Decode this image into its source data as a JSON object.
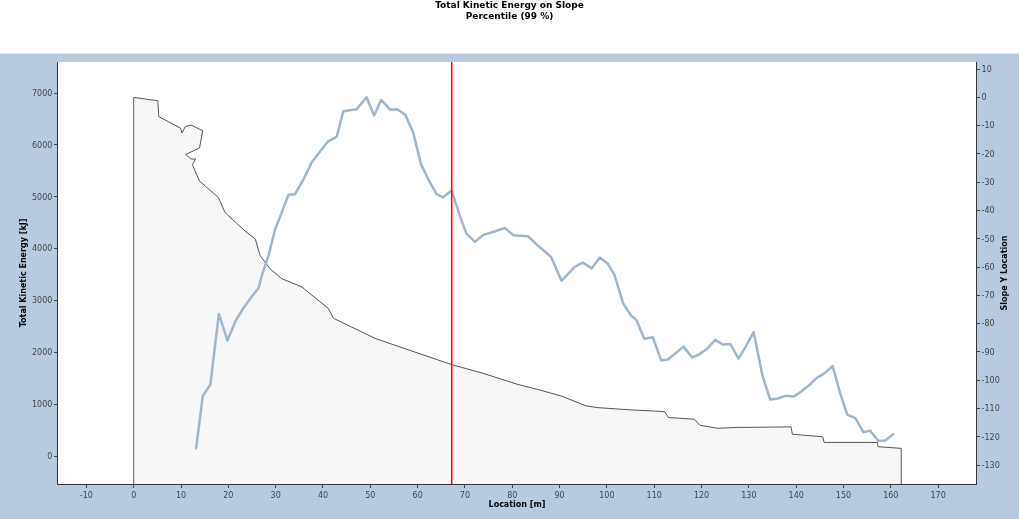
{
  "chart_data": {
    "type": "line",
    "title": "Total Kinetic Energy on Slope",
    "subtitle": "Percentile (99 %)",
    "xlabel": "Location [m]",
    "ylabel": "Total Kinetic Energy [kJ]",
    "y2label": "Slope Y Location",
    "xlim": [
      -16,
      178
    ],
    "xticks": [
      -10,
      0,
      10,
      20,
      30,
      40,
      50,
      60,
      70,
      80,
      90,
      100,
      110,
      120,
      130,
      140,
      150,
      160,
      170
    ],
    "ylim": [
      -540,
      7600
    ],
    "yticks": [
      0,
      1000,
      2000,
      3000,
      4000,
      5000,
      6000,
      7000
    ],
    "y2lim": [
      -136.7,
      12.5
    ],
    "y2ticks": [
      10,
      0,
      -10,
      -20,
      -30,
      -40,
      -50,
      -60,
      -70,
      -80,
      -90,
      -100,
      -110,
      -120,
      -130
    ],
    "series": [
      {
        "type": "area",
        "axis": "y2",
        "color": "#555555",
        "x": [
          0,
          0,
          5.1,
          5.3,
          9.9,
          10.2,
          10.9,
          12.1,
          14.6,
          13.9,
          11,
          12.1,
          13.1,
          12.4,
          13.9,
          17.9,
          19.3,
          23.5,
          25.7,
          26.7,
          28.8,
          31.3,
          35.5,
          41.1,
          42.2,
          51,
          56,
          67.2,
          73.5,
          81.2,
          85.4,
          90.4,
          95.6,
          98.1,
          105.1,
          112.2,
          113,
          118.5,
          119.6,
          123.4,
          127.6,
          138.9,
          139.2,
          145.6,
          145.9,
          157.2,
          157.3,
          162.2,
          162.2
        ],
        "values": [
          -136.7,
          0,
          -1.2,
          -6.8,
          -10.9,
          -12.6,
          -10.3,
          -9.8,
          -11.8,
          -17.9,
          -20.2,
          -21.8,
          -21.8,
          -23.8,
          -29.6,
          -35.4,
          -40.7,
          -47.2,
          -50.1,
          -55.9,
          -60.6,
          -64.1,
          -67,
          -74.6,
          -78.1,
          -85.2,
          -88.1,
          -94.5,
          -97.4,
          -101.5,
          -103.3,
          -105.6,
          -109.1,
          -109.7,
          -110.5,
          -111.1,
          -113.2,
          -113.8,
          -115.9,
          -117,
          -116.7,
          -116.5,
          -119.1,
          -120,
          -122,
          -122,
          -123.5,
          -124.1,
          -136.7
        ]
      },
      {
        "color": "#9fb6cc",
        "x": [
          13.2,
          14.6,
          16.2,
          18,
          19.8,
          21.5,
          23.1,
          25,
          26.4,
          27.1,
          28.5,
          29.9,
          31.3,
          32.7,
          34.1,
          35.9,
          37.6,
          39.7,
          41.1,
          42.9,
          44.3,
          47.1,
          49.2,
          50.8,
          52.3,
          54.2,
          55.7,
          57.4,
          59.1,
          60.7,
          62.4,
          64,
          65.4,
          67.2,
          68.9,
          70.3,
          72.1,
          73.8,
          76.3,
          78.4,
          80.2,
          83.3,
          85.4,
          88.2,
          90.4,
          93.2,
          94.9,
          96.8,
          98.5,
          100.2,
          101.6,
          103,
          103.4,
          105.1,
          106.2,
          107.9,
          109.7,
          111.5,
          112.9,
          116.2,
          118,
          119.5,
          121.2,
          122.9,
          124.5,
          126.1,
          127.8,
          129.4,
          131,
          132.9,
          134.5,
          136.1,
          137.8,
          139.5,
          141,
          142.8,
          144.4,
          145.9,
          147.7,
          149.3,
          150.8,
          152.5,
          154.2,
          155.6,
          157.4,
          158.8,
          160.5
        ],
        "values": [
          150,
          1160,
          1380,
          2740,
          2230,
          2600,
          2840,
          3080,
          3240,
          3490,
          3870,
          4380,
          4700,
          5040,
          5050,
          5340,
          5660,
          5910,
          6070,
          6160,
          6650,
          6690,
          6920,
          6570,
          6870,
          6680,
          6690,
          6580,
          6230,
          5630,
          5310,
          5050,
          4990,
          5120,
          4640,
          4290,
          4130,
          4260,
          4330,
          4400,
          4260,
          4240,
          4060,
          3840,
          3380,
          3650,
          3730,
          3620,
          3830,
          3710,
          3490,
          3080,
          2950,
          2710,
          2630,
          2260,
          2290,
          1840,
          1860,
          2110,
          1900,
          1960,
          2070,
          2240,
          2150,
          2160,
          1880,
          2120,
          2390,
          1540,
          1090,
          1110,
          1160,
          1150,
          1240,
          1370,
          1510,
          1590,
          1740,
          1210,
          800,
          730,
          460,
          490,
          290,
          300,
          420
        ]
      }
    ],
    "ref_lines": [
      {
        "axis": "x",
        "value": 67.2,
        "color": "#ff0000"
      }
    ]
  }
}
